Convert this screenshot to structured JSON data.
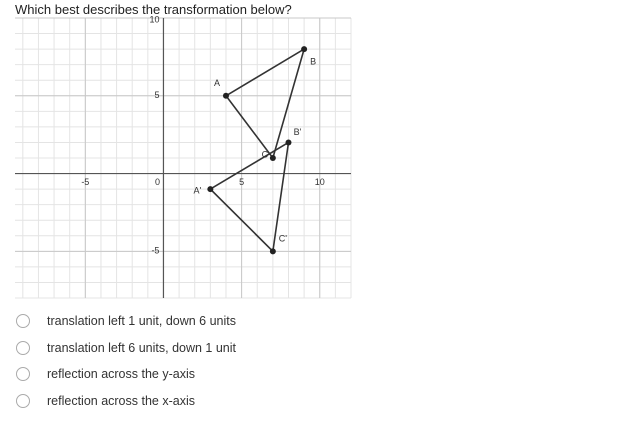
{
  "question": "Which best describes the transformation below?",
  "graph": {
    "xlim": [
      -9.5,
      12
    ],
    "ylim": [
      -8,
      10
    ],
    "xticks": [
      -5,
      0,
      5,
      10
    ],
    "yticks": [
      -5,
      5,
      10
    ],
    "points": [
      {
        "label": "A",
        "x": 4,
        "y": 5
      },
      {
        "label": "B",
        "x": 9,
        "y": 8
      },
      {
        "label": "C",
        "x": 7,
        "y": 1
      },
      {
        "label": "A'",
        "x": 3,
        "y": -1
      },
      {
        "label": "B'",
        "x": 8,
        "y": 2
      },
      {
        "label": "C'",
        "x": 7,
        "y": -5
      }
    ]
  },
  "options": [
    "translation left 1 unit, down 6 units",
    "translation left 6 units, down 1 unit",
    "reflection across the y-axis",
    "reflection across the x-axis"
  ]
}
